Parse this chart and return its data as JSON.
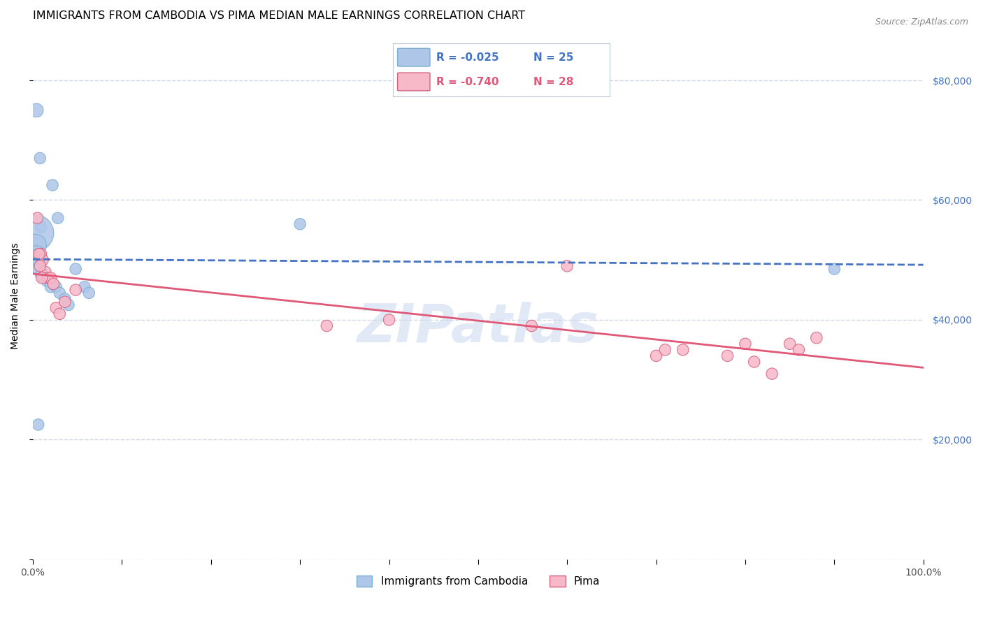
{
  "title": "IMMIGRANTS FROM CAMBODIA VS PIMA MEDIAN MALE EARNINGS CORRELATION CHART",
  "source": "Source: ZipAtlas.com",
  "ylabel": "Median Male Earnings",
  "watermark": "ZIPatlas",
  "xlim": [
    0,
    1.0
  ],
  "ylim": [
    0,
    88000
  ],
  "yticks": [
    0,
    20000,
    40000,
    60000,
    80000
  ],
  "ytick_labels": [
    "",
    "$20,000",
    "$40,000",
    "$60,000",
    "$80,000"
  ],
  "xticks": [
    0.0,
    0.1,
    0.2,
    0.3,
    0.4,
    0.5,
    0.6,
    0.7,
    0.8,
    0.9,
    1.0
  ],
  "xtick_labels": [
    "0.0%",
    "",
    "",
    "",
    "",
    "",
    "",
    "",
    "",
    "",
    "100.0%"
  ],
  "series1_name": "Immigrants from Cambodia",
  "series1_color": "#aec6e8",
  "series1_edge": "#7bafd4",
  "series1_x": [
    0.004,
    0.008,
    0.022,
    0.028,
    0.009,
    0.003,
    0.003,
    0.004,
    0.005,
    0.006,
    0.007,
    0.01,
    0.013,
    0.016,
    0.02,
    0.026,
    0.03,
    0.036,
    0.04,
    0.048,
    0.058,
    0.063,
    0.3,
    0.9,
    0.006
  ],
  "series1_y": [
    75000,
    67000,
    62500,
    57000,
    55500,
    54500,
    52500,
    51000,
    50500,
    49500,
    48500,
    47500,
    47000,
    46500,
    45500,
    45500,
    44500,
    43500,
    42500,
    48500,
    45500,
    44500,
    56000,
    48500,
    22500
  ],
  "series1_sizes": [
    200,
    140,
    140,
    140,
    140,
    1400,
    500,
    300,
    280,
    220,
    200,
    180,
    160,
    150,
    140,
    140,
    140,
    140,
    140,
    140,
    140,
    140,
    140,
    140,
    140
  ],
  "series2_name": "Pima",
  "series2_color": "#f7b8c8",
  "series2_edge": "#d46080",
  "series2_x": [
    0.005,
    0.009,
    0.011,
    0.014,
    0.017,
    0.02,
    0.023,
    0.026,
    0.03,
    0.036,
    0.048,
    0.33,
    0.6,
    0.7,
    0.71,
    0.73,
    0.78,
    0.8,
    0.81,
    0.83,
    0.85,
    0.86,
    0.88,
    0.4,
    0.007,
    0.008,
    0.01,
    0.56
  ],
  "series2_y": [
    57000,
    51000,
    50000,
    48000,
    47000,
    47000,
    46000,
    42000,
    41000,
    43000,
    45000,
    39000,
    49000,
    34000,
    35000,
    35000,
    34000,
    36000,
    33000,
    31000,
    36000,
    35000,
    37000,
    40000,
    51000,
    49000,
    47000,
    39000
  ],
  "series2_sizes": [
    140,
    140,
    140,
    140,
    140,
    140,
    140,
    140,
    140,
    140,
    140,
    140,
    140,
    140,
    140,
    140,
    140,
    140,
    140,
    140,
    140,
    140,
    140,
    140,
    140,
    140,
    140,
    140
  ],
  "trend1_color": "#4472c4",
  "trend2_color": "#e05878",
  "grid_color": "#d0d8e8",
  "background_color": "#ffffff",
  "title_fontsize": 11.5,
  "axis_label_fontsize": 10,
  "tick_fontsize": 10,
  "ytick_color": "#4472c4",
  "xtick_color": "#555555",
  "legend_r1": "R = -0.025",
  "legend_n1": "N = 25",
  "legend_r2": "R = -0.740",
  "legend_n2": "N = 28"
}
